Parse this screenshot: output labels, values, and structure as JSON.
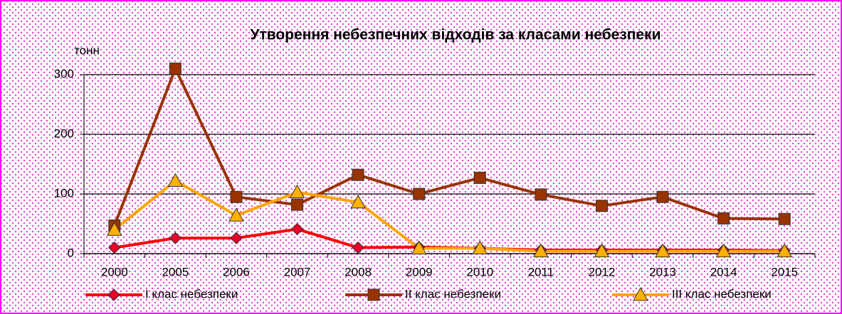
{
  "chart_data": {
    "type": "line",
    "title": "Утворення небезпечних відходів за класами небезпеки",
    "y_label": "тонн",
    "categories": [
      "2000",
      "2005",
      "2006",
      "2007",
      "2008",
      "2009",
      "2010",
      "2011",
      "2012",
      "2013",
      "2014",
      "2015"
    ],
    "series": [
      {
        "name": "І клас небезпеки",
        "color": "#ff0000",
        "marker_color": "#e8002a",
        "marker": "diamond",
        "values": [
          10,
          26,
          26,
          41,
          10,
          11,
          9,
          6,
          6,
          6,
          6,
          5
        ]
      },
      {
        "name": "ІІ клас небезпеки",
        "color": "#993300",
        "marker_color": "#993300",
        "marker": "square",
        "values": [
          47,
          310,
          95,
          82,
          132,
          100,
          127,
          99,
          80,
          95,
          59,
          58
        ]
      },
      {
        "name": "ІІІ клас небезпеки",
        "color": "#ffa500",
        "marker_color": "#ffb000",
        "marker": "triangle",
        "values": [
          40,
          122,
          64,
          103,
          86,
          9,
          9,
          4,
          4,
          4,
          4,
          4
        ]
      }
    ],
    "ylim": [
      0,
      300
    ],
    "yticks": [
      0,
      100,
      200,
      300
    ],
    "grid": true,
    "legend": "bottom"
  }
}
